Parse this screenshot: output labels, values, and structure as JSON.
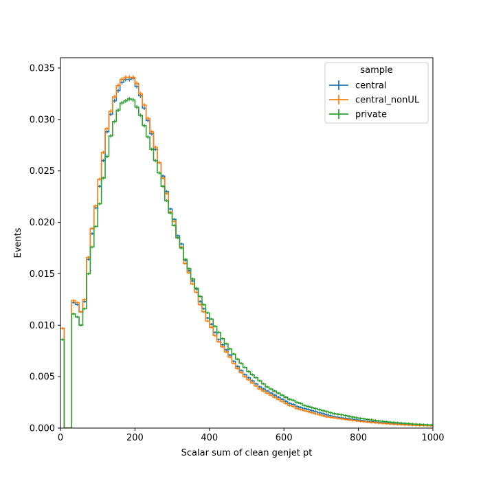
{
  "chart_data": {
    "type": "line",
    "style": "step-histogram",
    "xlabel": "Scalar sum of clean genjet pt",
    "ylabel": "Events",
    "xlim": [
      0,
      1000
    ],
    "ylim": [
      0,
      0.036
    ],
    "xticks": [
      0,
      200,
      400,
      600,
      800,
      1000
    ],
    "xtick_labels": [
      "0",
      "200",
      "400",
      "600",
      "800",
      "1000"
    ],
    "yticks": [
      0,
      0.005,
      0.01,
      0.015,
      0.02,
      0.025,
      0.03,
      0.035
    ],
    "ytick_labels": [
      "0.000",
      "0.005",
      "0.010",
      "0.015",
      "0.020",
      "0.025",
      "0.030",
      "0.035"
    ],
    "grid": false,
    "legend": {
      "title": "sample",
      "position": "top-right"
    },
    "bin_width": 10,
    "bin_edges_start": 0,
    "series": [
      {
        "name": "central",
        "color": "#1f77b4",
        "values": [
          0.0097,
          0.0,
          0.0,
          0.0122,
          0.012,
          0.0113,
          0.0123,
          0.0164,
          0.0189,
          0.0214,
          0.0235,
          0.026,
          0.0288,
          0.0305,
          0.0318,
          0.0328,
          0.0336,
          0.0339,
          0.0339,
          0.034,
          0.0332,
          0.0323,
          0.0311,
          0.0299,
          0.0286,
          0.0271,
          0.0258,
          0.0245,
          0.023,
          0.0213,
          0.0203,
          0.0187,
          0.0179,
          0.0163,
          0.0153,
          0.0143,
          0.0135,
          0.0123,
          0.0116,
          0.0107,
          0.0101,
          0.0093,
          0.0086,
          0.0081,
          0.0076,
          0.0071,
          0.0065,
          0.006,
          0.0056,
          0.0052,
          0.0049,
          0.0046,
          0.0043,
          0.004,
          0.0038,
          0.0036,
          0.0034,
          0.0032,
          0.003,
          0.0028,
          0.0026,
          0.0024,
          0.0023,
          0.0021,
          0.002,
          0.0019,
          0.0018,
          0.0017,
          0.0016,
          0.0015,
          0.0014,
          0.0013,
          0.0012,
          0.0011,
          0.00105,
          0.001,
          0.00095,
          0.0009,
          0.00085,
          0.0008,
          0.00075,
          0.0007,
          0.00066,
          0.00062,
          0.00058,
          0.00055,
          0.00052,
          0.00049,
          0.00046,
          0.00043,
          0.0004,
          0.00038,
          0.00036,
          0.00034,
          0.00032,
          0.0003,
          0.00028,
          0.00027,
          0.00026,
          0.00025
        ]
      },
      {
        "name": "central_nonUL",
        "color": "#ff7f0e",
        "values": [
          0.0097,
          0.0,
          0.0,
          0.0124,
          0.0122,
          0.0113,
          0.0125,
          0.0166,
          0.0194,
          0.0216,
          0.0242,
          0.0268,
          0.0291,
          0.0308,
          0.0322,
          0.0333,
          0.0339,
          0.0341,
          0.0341,
          0.0341,
          0.0335,
          0.0325,
          0.0314,
          0.0301,
          0.0288,
          0.0273,
          0.0258,
          0.0243,
          0.0228,
          0.021,
          0.0201,
          0.0185,
          0.0176,
          0.016,
          0.0151,
          0.014,
          0.0132,
          0.012,
          0.0113,
          0.0104,
          0.0098,
          0.009,
          0.0084,
          0.0079,
          0.0074,
          0.0069,
          0.0063,
          0.0058,
          0.0054,
          0.005,
          0.0047,
          0.0044,
          0.0041,
          0.0038,
          0.0036,
          0.0034,
          0.0032,
          0.003,
          0.0028,
          0.0026,
          0.0024,
          0.0022,
          0.0021,
          0.0019,
          0.0018,
          0.0017,
          0.0016,
          0.0015,
          0.0014,
          0.0013,
          0.0012,
          0.0011,
          0.00105,
          0.001,
          0.00095,
          0.0009,
          0.00085,
          0.0008,
          0.00075,
          0.0007,
          0.00066,
          0.00062,
          0.00058,
          0.00055,
          0.00052,
          0.00049,
          0.00046,
          0.00043,
          0.0004,
          0.00038,
          0.00036,
          0.00034,
          0.00032,
          0.0003,
          0.00028,
          0.00027,
          0.00026,
          0.00025,
          0.00024,
          0.00023
        ]
      },
      {
        "name": "private",
        "color": "#2ca02c",
        "values": [
          0.0086,
          0.0,
          0.0,
          0.0111,
          0.0108,
          0.01,
          0.0116,
          0.015,
          0.0176,
          0.0196,
          0.0218,
          0.0243,
          0.0264,
          0.0284,
          0.0298,
          0.0309,
          0.0316,
          0.0318,
          0.032,
          0.0319,
          0.0312,
          0.0304,
          0.0294,
          0.0283,
          0.0271,
          0.026,
          0.0248,
          0.0235,
          0.0221,
          0.0209,
          0.0197,
          0.0185,
          0.0175,
          0.0164,
          0.0155,
          0.0145,
          0.0136,
          0.0128,
          0.012,
          0.0112,
          0.0106,
          0.0099,
          0.0093,
          0.0087,
          0.0082,
          0.0077,
          0.0072,
          0.0067,
          0.0063,
          0.0059,
          0.0055,
          0.0052,
          0.0049,
          0.0046,
          0.0043,
          0.004,
          0.0038,
          0.0036,
          0.0034,
          0.0032,
          0.003,
          0.0028,
          0.0027,
          0.0025,
          0.0024,
          0.0022,
          0.0021,
          0.002,
          0.0019,
          0.0018,
          0.0017,
          0.0016,
          0.0015,
          0.0014,
          0.00135,
          0.0013,
          0.00122,
          0.00115,
          0.00108,
          0.001,
          0.00095,
          0.0009,
          0.00085,
          0.0008,
          0.00075,
          0.0007,
          0.00066,
          0.00062,
          0.00058,
          0.00055,
          0.00052,
          0.00049,
          0.00046,
          0.00043,
          0.0004,
          0.00038,
          0.00036,
          0.00034,
          0.00032,
          0.0003
        ]
      }
    ]
  }
}
